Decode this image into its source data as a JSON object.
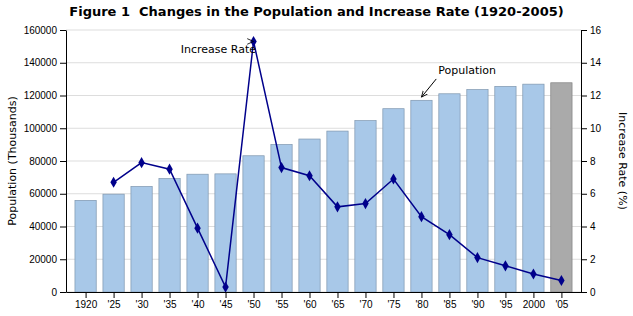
{
  "chart_data": {
    "type": "bar",
    "title": "Figure 1  Changes in the Population and Increase Rate (1920-2005)",
    "x": [
      1920,
      1925,
      1930,
      1935,
      1940,
      1945,
      1950,
      1955,
      1960,
      1965,
      1970,
      1975,
      1980,
      1985,
      1990,
      1995,
      2000,
      2005
    ],
    "xlim": [
      1916.5,
      2008.5
    ],
    "xticks": [
      1920,
      {
        "value": 1925,
        "label": "'25"
      },
      {
        "value": 1930,
        "label": "'30"
      },
      {
        "value": 1935,
        "label": "'35"
      },
      {
        "value": 1940,
        "label": "'40"
      },
      {
        "value": 1945,
        "label": "'45"
      },
      {
        "value": 1950,
        "label": "'50"
      },
      {
        "value": 1955,
        "label": "'55"
      },
      {
        "value": 1960,
        "label": "'60"
      },
      {
        "value": 1965,
        "label": "'65"
      },
      {
        "value": 1970,
        "label": "'70"
      },
      {
        "value": 1975,
        "label": "'75"
      },
      {
        "value": 1980,
        "label": "'80"
      },
      {
        "value": 1985,
        "label": "'85"
      },
      {
        "value": 1990,
        "label": "'90"
      },
      {
        "value": 1995,
        "label": "'95"
      },
      2000,
      {
        "value": 2005,
        "label": "'05"
      }
    ],
    "ylabel": "Population (Thousands)",
    "ylim": [
      0,
      160000
    ],
    "yticks": [
      0,
      20000,
      40000,
      60000,
      80000,
      100000,
      120000,
      140000,
      160000
    ],
    "y2label": "Increase Rate (%)",
    "y2lim": [
      0,
      16
    ],
    "y2ticks": [
      0,
      2,
      4,
      6,
      8,
      10,
      12,
      14,
      16
    ],
    "grid": true,
    "series": [
      {
        "type": "bar",
        "colors": [
          "#a8c8e8",
          "#a8c8e8",
          "#a8c8e8",
          "#a8c8e8",
          "#a8c8e8",
          "#a8c8e8",
          "#a8c8e8",
          "#a8c8e8",
          "#a8c8e8",
          "#a8c8e8",
          "#a8c8e8",
          "#a8c8e8",
          "#a8c8e8",
          "#a8c8e8",
          "#a8c8e8",
          "#a8c8e8",
          "#a8c8e8",
          "#aaaaaa"
        ],
        "values": [
          55963,
          59737,
          64450,
          69254,
          71933,
          72147,
          83200,
          90077,
          93419,
          98275,
          104665,
          111940,
          117060,
          121049,
          123611,
          125570,
          126926,
          127768
        ]
      },
      {
        "type": "line",
        "axis": "y2",
        "color": "#00008b",
        "marker": "diamond",
        "values": [
          null,
          6.7,
          7.9,
          7.5,
          3.9,
          0.3,
          15.3,
          7.6,
          7.1,
          5.2,
          5.4,
          6.9,
          4.6,
          3.5,
          2.1,
          1.6,
          1.1,
          0.7
        ]
      }
    ],
    "annotations": [
      {
        "text": "Increase Rate",
        "x": 1937,
        "y": 14.8,
        "arrow_x": 1950,
        "arrow_y": 15.3,
        "axis": "y2"
      },
      {
        "text": "Population",
        "x": 1983,
        "y": 135000,
        "arrow_x": 1980,
        "arrow_y": 119000
      }
    ]
  }
}
